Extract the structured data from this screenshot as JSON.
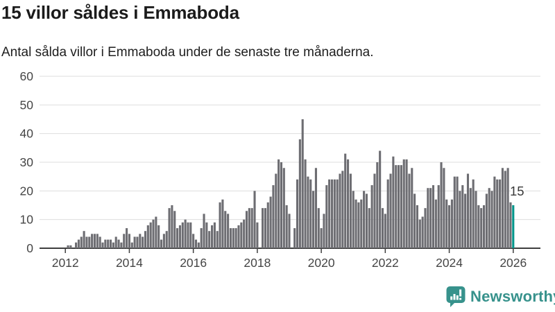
{
  "header": {
    "title": "15 villor såldes i Emmaboda",
    "subtitle": "Antal sålda villor i Emmaboda under de senaste tre månaderna."
  },
  "chart_data": {
    "type": "bar",
    "title": "15 villor såldes i Emmaboda",
    "subtitle": "Antal sålda villor i Emmaboda under de senaste tre månaderna.",
    "ylabel": "",
    "xlabel": "",
    "x_start": "2012-02",
    "x_end": "2026-01",
    "x_interval": "month",
    "values": [
      1,
      1,
      0,
      2,
      3,
      4,
      6,
      4,
      4,
      5,
      5,
      5,
      4,
      2,
      3,
      3,
      3,
      2,
      4,
      3,
      2,
      5,
      7,
      5,
      2,
      4,
      4,
      5,
      4,
      6,
      8,
      9,
      10,
      11,
      8,
      3,
      5,
      6,
      14,
      15,
      13,
      7,
      8,
      9,
      10,
      9,
      9,
      5,
      3,
      2,
      7,
      12,
      9,
      6,
      8,
      9,
      6,
      16,
      17,
      13,
      12,
      7,
      7,
      7,
      8,
      9,
      10,
      13,
      14,
      14,
      20,
      9,
      0,
      14,
      14,
      16,
      18,
      22,
      26,
      31,
      30,
      28,
      15,
      12,
      0,
      7,
      24,
      38,
      45,
      31,
      25,
      24,
      20,
      28,
      14,
      7,
      12,
      22,
      24,
      24,
      24,
      24,
      26,
      27,
      33,
      31,
      26,
      20,
      17,
      16,
      17,
      20,
      19,
      14,
      22,
      26,
      30,
      34,
      14,
      12,
      24,
      26,
      32,
      29,
      29,
      29,
      31,
      31,
      26,
      28,
      19,
      15,
      10,
      11,
      14,
      21,
      21,
      22,
      17,
      22,
      30,
      28,
      17,
      15,
      17,
      25,
      25,
      20,
      22,
      19,
      26,
      21,
      24,
      20,
      15,
      14,
      15,
      19,
      21,
      20,
      25,
      24,
      24,
      28,
      27,
      28,
      16,
      15
    ],
    "ylim": [
      0,
      60
    ],
    "yticks": [
      0,
      10,
      20,
      30,
      40,
      50,
      60
    ],
    "xticks": [
      "2012",
      "2014",
      "2016",
      "2018",
      "2020",
      "2022",
      "2024",
      "2026"
    ],
    "grid": "horizontal",
    "legend": "none",
    "highlight_last_bar": true,
    "annotation": {
      "text": "15",
      "target": "2026-01"
    },
    "colors": {
      "bar": "#6d6d72",
      "highlight": "#00968b",
      "grid": "#dedede",
      "axis": "#3d3d3d",
      "tick_label": "#454545",
      "annotation_text": "#383838",
      "annotation_halo": "#ffffff"
    }
  },
  "branding": {
    "name": "Newsworthy",
    "icon": "newsworthy-bubble-chart-icon",
    "color": "#37928c"
  }
}
